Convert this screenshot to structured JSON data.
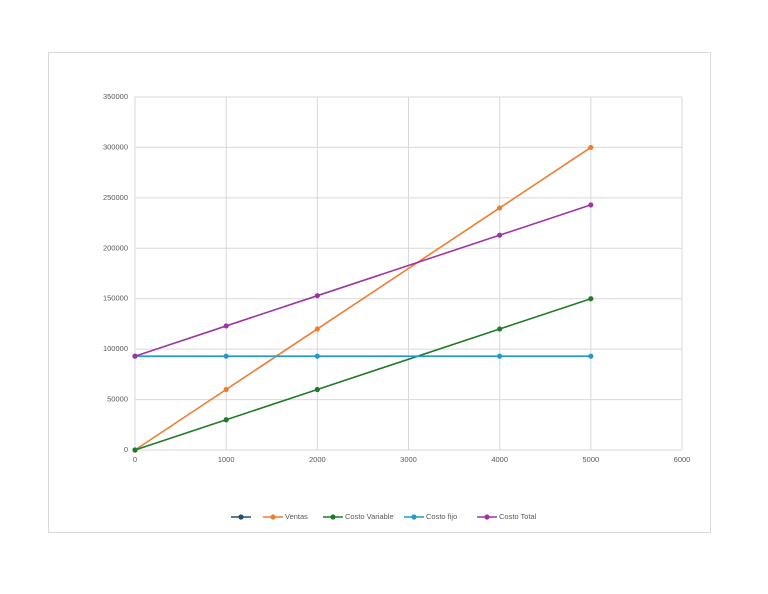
{
  "chart_data": {
    "type": "line",
    "x": [
      0,
      1000,
      2000,
      4000,
      5000
    ],
    "series": [
      {
        "name": null,
        "color": "#1f4e79",
        "values": [
          null,
          null,
          null,
          null,
          null
        ]
      },
      {
        "name": "Ventas",
        "color": "#ed7d31",
        "values": [
          0,
          60000,
          120000,
          240000,
          300000
        ]
      },
      {
        "name": "Costo Variable",
        "color": "#217a2b",
        "values": [
          0,
          30000,
          60000,
          120000,
          150000
        ]
      },
      {
        "name": "Costo fijo",
        "color": "#1f9bd1",
        "values": [
          93000,
          93000,
          93000,
          93000,
          93000
        ]
      },
      {
        "name": "Costo Total",
        "color": "#9e35a3",
        "values": [
          93000,
          123000,
          153000,
          213000,
          243000
        ]
      }
    ],
    "xlim": [
      0,
      6000
    ],
    "xticks": [
      0,
      1000,
      2000,
      3000,
      4000,
      5000,
      6000
    ],
    "ylim": [
      0,
      350000
    ],
    "yticks": [
      0,
      50000,
      100000,
      150000,
      200000,
      250000,
      300000,
      350000
    ],
    "grid": true,
    "legend": "bottom"
  }
}
